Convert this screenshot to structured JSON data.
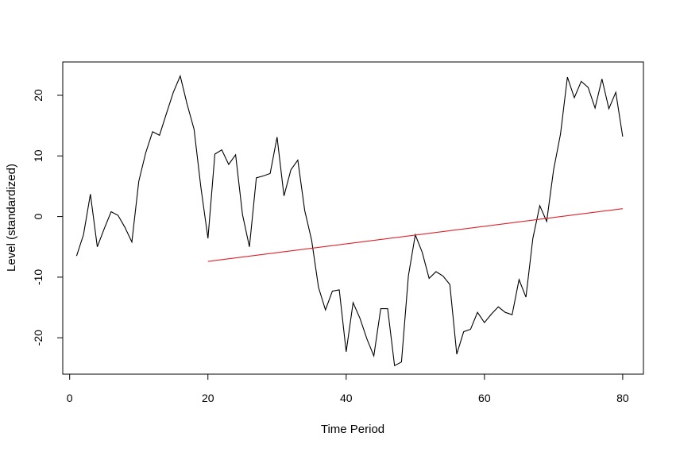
{
  "chart_data": {
    "type": "line",
    "title": "",
    "xlabel": "Time Period",
    "ylabel": "Level (standardized)",
    "xlim": [
      -1,
      83
    ],
    "ylim": [
      -26,
      25.5
    ],
    "x_ticks": [
      0,
      20,
      40,
      60,
      80
    ],
    "x_tick_labels": [
      "0",
      "20",
      "40",
      "60",
      "80"
    ],
    "y_ticks": [
      -20,
      -10,
      0,
      10,
      20
    ],
    "y_tick_labels": [
      "-20",
      "-10",
      "0",
      "10",
      "20"
    ],
    "grid": false,
    "legend": "none",
    "series": [
      {
        "color": "#000000",
        "x": [
          1,
          2,
          3,
          4,
          5,
          6,
          7,
          8,
          9,
          10,
          11,
          12,
          13,
          14,
          15,
          16,
          17,
          18,
          19,
          20,
          21,
          22,
          23,
          24,
          25,
          26,
          27,
          28,
          29,
          30,
          31,
          32,
          33,
          34,
          35,
          36,
          37,
          38,
          39,
          40,
          41,
          42,
          43,
          44,
          45,
          46,
          47,
          48,
          49,
          50,
          51,
          52,
          53,
          54,
          55,
          56,
          57,
          58,
          59,
          60,
          61,
          62,
          63,
          64,
          65,
          66,
          67,
          68,
          69,
          70,
          71,
          72,
          73,
          74,
          75,
          76,
          77,
          78,
          79,
          80
        ],
        "y": [
          -6.5,
          -3,
          3.7,
          -5,
          -2,
          0.8,
          0.2,
          -1.8,
          -4.2,
          5.8,
          10.5,
          14,
          13.4,
          17,
          20.5,
          23.2,
          18.5,
          14.4,
          4.7,
          -3.6,
          10.3,
          11,
          8.6,
          10.2,
          0.3,
          -5,
          6.4,
          6.7,
          7.1,
          13.1,
          3.4,
          7.7,
          9.3,
          1,
          -3.9,
          -11.7,
          -15.4,
          -12.3,
          -12.1,
          -22.3,
          -14.2,
          -16.8,
          -20.2,
          -23,
          -15.2,
          -15.2,
          -24.6,
          -24,
          -9.8,
          -3,
          -5.9,
          -10.2,
          -9.1,
          -9.8,
          -11.2,
          -22.7,
          -19,
          -18.6,
          -15.8,
          -17.5,
          -16.1,
          -14.9,
          -15.8,
          -16.2,
          -10.4,
          -13.3,
          -3.6,
          1.8,
          -0.8,
          7.7,
          13.6,
          23,
          19.6,
          22.3,
          21.3,
          17.9,
          22.7,
          17.8,
          20.5,
          13.2
        ]
      },
      {
        "color": "#e0202a",
        "x": [
          20,
          80
        ],
        "y": [
          -7.4,
          1.3
        ]
      }
    ]
  }
}
